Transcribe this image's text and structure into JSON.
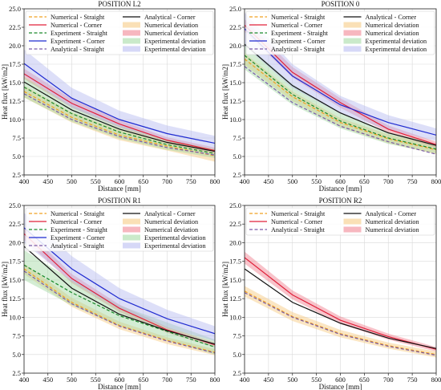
{
  "figure": {
    "background": "#ffffff"
  },
  "chart_data": [
    {
      "type": "line",
      "title": "POSITION L2",
      "xlabel": "Distance [mm]",
      "ylabel": "Heat flux [kW/m2]",
      "xlim": [
        400,
        800
      ],
      "ylim": [
        2.5,
        25.0
      ],
      "xticks": [
        {
          "value": 400,
          "label": "400"
        },
        {
          "value": 450,
          "label": "450"
        },
        {
          "value": 500,
          "label": "500"
        },
        {
          "value": 550,
          "label": "550"
        },
        {
          "value": 600,
          "label": "600"
        },
        {
          "value": 650,
          "label": "650"
        },
        {
          "value": 700,
          "label": "700"
        },
        {
          "value": 750,
          "label": "750"
        },
        {
          "value": 800,
          "label": "800"
        }
      ],
      "yticks": [
        "2.5",
        "5.0",
        "7.5",
        "10.0",
        "12.5",
        "15.0",
        "17.5",
        "20.0",
        "22.5",
        "25.0"
      ],
      "grid": true,
      "legend_position": "top",
      "x": [
        400,
        500,
        600,
        700,
        800
      ],
      "series": [
        {
          "name": "Numerical - Straight",
          "style": "dashed",
          "color": "#f0a020",
          "values": [
            13.8,
            10.3,
            7.9,
            6.4,
            5.1
          ]
        },
        {
          "name": "Numerical - Corner",
          "style": "solid",
          "color": "#e0203a",
          "values": [
            16.2,
            12.2,
            9.4,
            7.2,
            5.8
          ]
        },
        {
          "name": "Experiment - Straight",
          "style": "dashed",
          "color": "#1a8a2a",
          "values": [
            14.4,
            10.8,
            8.3,
            6.6,
            5.4
          ]
        },
        {
          "name": "Experiment - Corner",
          "style": "solid",
          "color": "#1f2ad0",
          "values": [
            17.6,
            12.9,
            10.0,
            8.1,
            6.8
          ]
        },
        {
          "name": "Analytical - Straight",
          "style": "dashed",
          "color": "#7a5ba8",
          "values": [
            13.5,
            10.0,
            7.7,
            6.2,
            5.2
          ]
        },
        {
          "name": "Analytical - Corner",
          "style": "solid",
          "color": "#111111",
          "values": [
            15.1,
            11.3,
            8.7,
            6.9,
            5.7
          ]
        }
      ],
      "bands": [
        {
          "name": "Numerical deviation",
          "color": "#f6c77a",
          "opacity": 0.45,
          "lower": [
            13.0,
            9.6,
            7.2,
            5.8,
            4.3
          ],
          "upper": [
            14.6,
            11.0,
            8.6,
            7.0,
            5.9
          ]
        },
        {
          "name": "Numerical deviation",
          "color": "#f07b8a",
          "opacity": 0.45,
          "lower": [
            15.5,
            11.6,
            8.9,
            6.8,
            5.4
          ],
          "upper": [
            16.9,
            12.8,
            9.9,
            7.6,
            6.2
          ]
        },
        {
          "name": "Experimental deviation",
          "color": "#9fd89f",
          "opacity": 0.45,
          "lower": [
            13.0,
            9.7,
            7.4,
            5.9,
            4.8
          ],
          "upper": [
            15.8,
            11.9,
            9.2,
            7.3,
            6.0
          ]
        },
        {
          "name": "Experimental deviation",
          "color": "#b4b8f0",
          "opacity": 0.45,
          "lower": [
            16.0,
            11.6,
            9.0,
            7.2,
            6.0
          ],
          "upper": [
            19.5,
            14.3,
            11.2,
            9.2,
            7.8
          ]
        }
      ]
    },
    {
      "type": "line",
      "title": "POSITION 0",
      "xlabel": "Distance [mm]",
      "ylabel": "Heat flux [kW/m2]",
      "xlim": [
        400,
        800
      ],
      "ylim": [
        2.5,
        25.0
      ],
      "xticks": [
        {
          "value": 400,
          "label": "400"
        },
        {
          "value": 450,
          "label": "450"
        },
        {
          "value": 500,
          "label": "500"
        },
        {
          "value": 550,
          "label": "550"
        },
        {
          "value": 600,
          "label": "600"
        },
        {
          "value": 650,
          "label": "650"
        },
        {
          "value": 700,
          "label": "700"
        },
        {
          "value": 750,
          "label": "750"
        },
        {
          "value": 800,
          "label": "800"
        }
      ],
      "yticks": [
        "2.5",
        "5.0",
        "7.5",
        "10.0",
        "12.5",
        "15.0",
        "17.5",
        "20.0",
        "22.5",
        "25.0"
      ],
      "grid": true,
      "legend_position": "top",
      "x": [
        400,
        500,
        600,
        700,
        800
      ],
      "series": [
        {
          "name": "Numerical - Straight",
          "style": "dashed",
          "color": "#f0a020",
          "values": [
            18.2,
            13.1,
            9.6,
            7.4,
            5.9
          ]
        },
        {
          "name": "Numerical - Corner",
          "style": "solid",
          "color": "#e0203a",
          "values": [
            22.8,
            16.4,
            12.3,
            8.7,
            6.6
          ]
        },
        {
          "name": "Experiment - Straight",
          "style": "dashed",
          "color": "#1a8a2a",
          "values": [
            18.7,
            13.4,
            9.8,
            7.5,
            6.0
          ]
        },
        {
          "name": "Experiment - Corner",
          "style": "solid",
          "color": "#1f2ad0",
          "values": [
            22.3,
            15.9,
            12.0,
            9.6,
            7.9
          ]
        },
        {
          "name": "Analytical - Straight",
          "style": "dashed",
          "color": "#7a5ba8",
          "values": [
            17.2,
            12.3,
            9.1,
            7.0,
            5.3
          ]
        },
        {
          "name": "Analytical - Corner",
          "style": "solid",
          "color": "#111111",
          "values": [
            20.2,
            14.6,
            10.9,
            8.2,
            6.5
          ]
        }
      ],
      "bands": [
        {
          "name": "Numerical deviation",
          "color": "#f6c77a",
          "opacity": 0.45,
          "lower": [
            17.4,
            12.5,
            9.0,
            6.8,
            5.3
          ],
          "upper": [
            19.0,
            13.8,
            10.2,
            8.0,
            6.5
          ]
        },
        {
          "name": "Numerical deviation",
          "color": "#f07b8a",
          "opacity": 0.45,
          "lower": [
            21.9,
            15.7,
            11.6,
            8.2,
            6.2
          ],
          "upper": [
            23.6,
            17.1,
            12.9,
            9.2,
            7.0
          ]
        },
        {
          "name": "Experimental deviation",
          "color": "#9fd89f",
          "opacity": 0.45,
          "lower": [
            16.8,
            12.0,
            8.8,
            6.7,
            5.4
          ],
          "upper": [
            20.4,
            14.8,
            10.8,
            8.3,
            6.7
          ]
        },
        {
          "name": "Experimental deviation",
          "color": "#b4b8f0",
          "opacity": 0.45,
          "lower": [
            20.0,
            14.3,
            10.8,
            8.6,
            7.1
          ],
          "upper": [
            24.5,
            17.5,
            13.2,
            10.6,
            8.8
          ]
        }
      ]
    },
    {
      "type": "line",
      "title": "POSITION R1",
      "xlabel": "Distance [mm]",
      "ylabel": "Heat flux [kW/m2]",
      "xlim": [
        400,
        800
      ],
      "ylim": [
        2.5,
        25.0
      ],
      "xticks": [
        {
          "value": 400,
          "label": "400"
        },
        {
          "value": 450,
          "label": "450"
        },
        {
          "value": 500,
          "label": "500"
        },
        {
          "value": 550,
          "label": "550"
        },
        {
          "value": 600,
          "label": "600"
        },
        {
          "value": 650,
          "label": "650"
        },
        {
          "value": 700,
          "label": "700"
        },
        {
          "value": 750,
          "label": "750"
        },
        {
          "value": 800,
          "label": "800"
        }
      ],
      "yticks": [
        "2.5",
        "5.0",
        "7.5",
        "10.0",
        "12.5",
        "15.0",
        "17.5",
        "20.0",
        "22.5",
        "25.0"
      ],
      "grid": true,
      "legend_position": "top",
      "x": [
        400,
        500,
        600,
        700,
        800
      ],
      "series": [
        {
          "name": "Numerical - Straight",
          "style": "dashed",
          "color": "#f0a020",
          "values": [
            16.5,
            12.0,
            8.9,
            6.9,
            5.3
          ]
        },
        {
          "name": "Numerical - Corner",
          "style": "solid",
          "color": "#e0203a",
          "values": [
            21.2,
            15.2,
            11.2,
            8.3,
            6.3
          ]
        },
        {
          "name": "Experiment - Straight",
          "style": "dashed",
          "color": "#1a8a2a",
          "values": [
            17.0,
            13.3,
            10.2,
            8.1,
            6.0
          ]
        },
        {
          "name": "Experiment - Corner",
          "style": "solid",
          "color": "#1f2ad0",
          "values": [
            22.0,
            16.5,
            12.5,
            9.8,
            7.8
          ]
        },
        {
          "name": "Analytical - Straight",
          "style": "dashed",
          "color": "#7a5ba8",
          "values": [
            16.2,
            11.8,
            8.8,
            6.8,
            5.2
          ]
        },
        {
          "name": "Analytical - Corner",
          "style": "solid",
          "color": "#111111",
          "values": [
            19.5,
            13.9,
            10.4,
            8.2,
            6.4
          ]
        }
      ],
      "bands": [
        {
          "name": "Numerical deviation",
          "color": "#f6c77a",
          "opacity": 0.45,
          "lower": [
            15.8,
            11.4,
            8.4,
            6.4,
            4.9
          ],
          "upper": [
            17.2,
            12.6,
            9.4,
            7.3,
            5.7
          ]
        },
        {
          "name": "Numerical deviation",
          "color": "#f07b8a",
          "opacity": 0.45,
          "lower": [
            20.4,
            14.6,
            10.7,
            7.9,
            6.0
          ],
          "upper": [
            22.0,
            15.8,
            11.7,
            8.7,
            6.6
          ]
        },
        {
          "name": "Experimental deviation",
          "color": "#9fd89f",
          "opacity": 0.45,
          "lower": [
            15.0,
            11.6,
            8.8,
            6.9,
            5.0
          ],
          "upper": [
            19.0,
            15.0,
            11.6,
            9.3,
            7.0
          ]
        },
        {
          "name": "Experimental deviation",
          "color": "#b4b8f0",
          "opacity": 0.45,
          "lower": [
            20.0,
            14.8,
            11.1,
            8.6,
            6.8
          ],
          "upper": [
            24.0,
            18.2,
            13.9,
            11.0,
            8.8
          ]
        }
      ]
    },
    {
      "type": "line",
      "title": "POSITION R2",
      "xlabel": "Distance [mm]",
      "ylabel": "Heat flux [kW/m2]",
      "xlim": [
        400,
        800
      ],
      "ylim": [
        2.5,
        25.0
      ],
      "xticks": [
        {
          "value": 400,
          "label": "400"
        },
        {
          "value": 450,
          "label": "450"
        },
        {
          "value": 500,
          "label": "500"
        },
        {
          "value": 550,
          "label": "550"
        },
        {
          "value": 600,
          "label": "600"
        },
        {
          "value": 650,
          "label": "650"
        },
        {
          "value": 700,
          "label": "700"
        },
        {
          "value": 750,
          "label": "750"
        },
        {
          "value": 800,
          "label": "800"
        }
      ],
      "yticks": [
        "2.5",
        "5.0",
        "7.5",
        "10.0",
        "12.5",
        "15.0",
        "17.5",
        "20.0",
        "22.5",
        "25.0"
      ],
      "grid": true,
      "legend_position": "top",
      "x": [
        400,
        500,
        600,
        700,
        800
      ],
      "series": [
        {
          "name": "Numerical - Straight",
          "style": "dashed",
          "color": "#f0a020",
          "values": [
            13.5,
            10.1,
            7.8,
            6.2,
            5.0
          ]
        },
        {
          "name": "Numerical - Corner",
          "style": "solid",
          "color": "#e0203a",
          "values": [
            18.0,
            13.0,
            9.6,
            7.4,
            5.7
          ]
        },
        {
          "name": "Analytical - Straight",
          "style": "dashed",
          "color": "#7a5ba8",
          "values": [
            13.3,
            10.0,
            7.7,
            6.1,
            4.9
          ]
        },
        {
          "name": "Analytical - Corner",
          "style": "solid",
          "color": "#111111",
          "values": [
            16.5,
            12.0,
            9.2,
            7.2,
            5.8
          ]
        }
      ],
      "bands": [
        {
          "name": "Numerical deviation",
          "color": "#f6c77a",
          "opacity": 0.45,
          "lower": [
            12.8,
            9.5,
            7.3,
            5.8,
            4.6
          ],
          "upper": [
            14.2,
            10.7,
            8.3,
            6.6,
            5.4
          ]
        },
        {
          "name": "Numerical deviation",
          "color": "#f07b8a",
          "opacity": 0.45,
          "lower": [
            17.2,
            12.4,
            9.1,
            7.0,
            5.4
          ],
          "upper": [
            18.8,
            13.6,
            10.1,
            7.8,
            6.0
          ]
        }
      ]
    }
  ]
}
